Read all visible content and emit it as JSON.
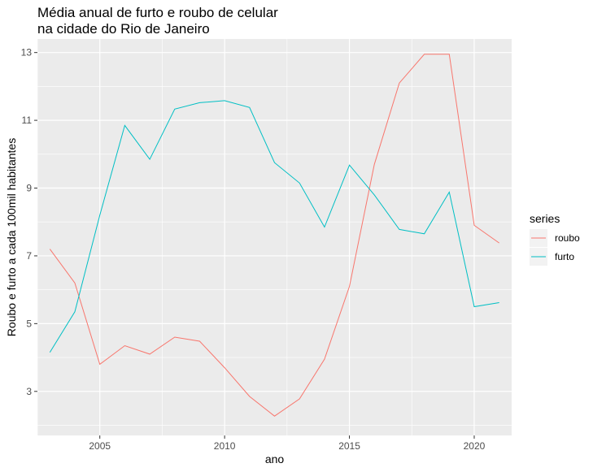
{
  "chart_data": {
    "type": "line",
    "title_line1": "Média anual de furto e roubo de celular",
    "title_line2": "na cidade do Rio de Janeiro",
    "xlabel": "ano",
    "ylabel": "Roubo e furto a cada 100mil habitantes",
    "xlim": [
      2002.5,
      2021.5
    ],
    "ylim": [
      1.7,
      13.4
    ],
    "xticks": [
      2005,
      2010,
      2015,
      2020
    ],
    "yticks": [
      3,
      5,
      7,
      9,
      11,
      13
    ],
    "grid": true,
    "legend": {
      "title": "series",
      "placement": "right"
    },
    "x": [
      2003,
      2004,
      2005,
      2006,
      2007,
      2008,
      2009,
      2010,
      2011,
      2012,
      2013,
      2014,
      2015,
      2016,
      2017,
      2018,
      2019,
      2020,
      2021
    ],
    "series": [
      {
        "name": "roubo",
        "color": "#F8766D",
        "values": [
          7.2,
          6.2,
          3.8,
          4.35,
          4.1,
          4.6,
          4.48,
          3.7,
          2.85,
          2.27,
          2.78,
          3.95,
          6.1,
          9.7,
          12.1,
          12.95,
          12.95,
          7.9,
          7.38
        ]
      },
      {
        "name": "furto",
        "color": "#00BFC4",
        "values": [
          4.15,
          5.35,
          8.2,
          10.85,
          9.85,
          11.33,
          11.52,
          11.58,
          11.38,
          9.75,
          9.15,
          7.85,
          9.68,
          8.8,
          7.78,
          7.65,
          8.88,
          5.5,
          5.62
        ]
      }
    ]
  }
}
